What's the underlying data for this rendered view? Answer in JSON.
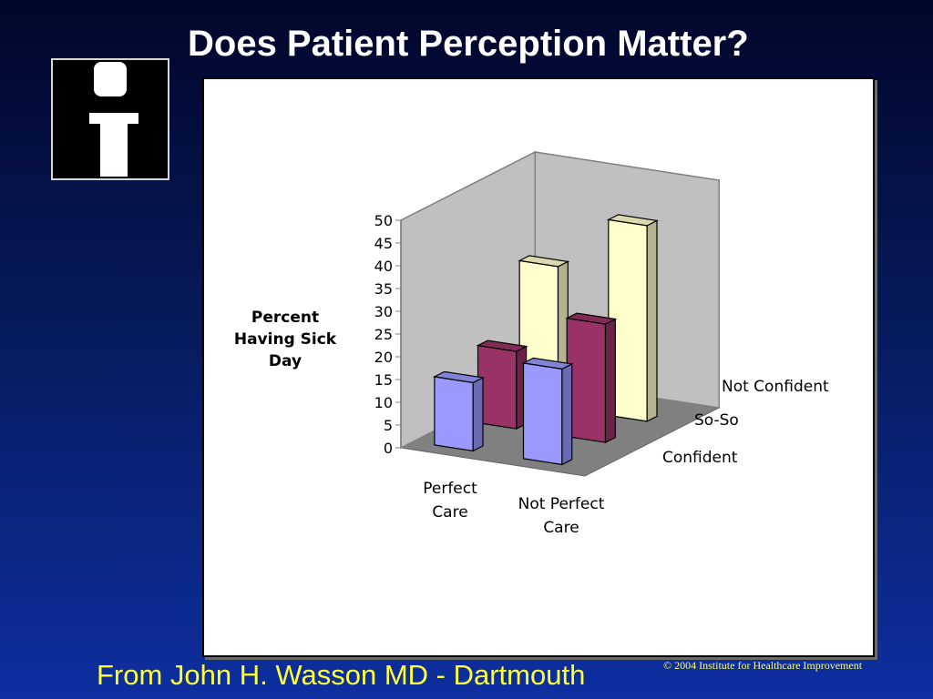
{
  "slide": {
    "title": "Does Patient Perception Matter?",
    "footer": "From John H. Wasson MD - Dartmouth",
    "copyright": "© 2004 Institute for Healthcare Improvement",
    "logo_icon": "info-i-icon"
  },
  "colors": {
    "confident": "#9999ff",
    "so_so": "#993366",
    "not_confident": "#ffffcc"
  },
  "chart_data": {
    "type": "bar",
    "is_3d": true,
    "ylabel_lines": [
      "Percent",
      "Having Sick",
      "Day"
    ],
    "ylim": [
      0,
      50
    ],
    "yticks": [
      50,
      45,
      40,
      35,
      30,
      25,
      20,
      15,
      10,
      5,
      0
    ],
    "categories": [
      {
        "name": "Perfect Care",
        "lines": [
          "Perfect",
          "Care"
        ]
      },
      {
        "name": "Not Perfect Care",
        "lines": [
          "Not Perfect",
          "Care"
        ]
      }
    ],
    "series": [
      {
        "name": "Confident",
        "values": [
          15,
          21
        ]
      },
      {
        "name": "So-So",
        "values": [
          17,
          26
        ]
      },
      {
        "name": "Not Confident",
        "values": [
          31,
          43
        ]
      }
    ],
    "legend": "depth-axis labels on right"
  }
}
